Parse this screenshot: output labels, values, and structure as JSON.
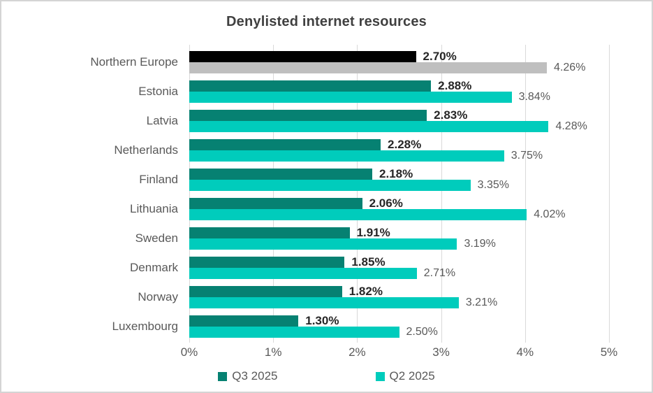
{
  "title": "Denylisted internet resources",
  "colors": {
    "q3_series": "#068172",
    "q2_series": "#00CCBC",
    "q3_highlight": "#000000",
    "q2_highlight": "#BFBFBF",
    "gridline": "#D9D9D9",
    "title_text": "#404040",
    "axis_text": "#595959",
    "q3_value_text": "#262626",
    "q2_value_text": "#595959"
  },
  "legend": {
    "items": [
      {
        "label": "Q3 2025",
        "color": "#068172"
      },
      {
        "label": "Q2 2025",
        "color": "#00CCBC"
      }
    ]
  },
  "chart_data": {
    "type": "bar",
    "orientation": "horizontal",
    "title": "Denylisted internet resources",
    "categories": [
      "Northern Europe",
      "Estonia",
      "Latvia",
      "Netherlands",
      "Finland",
      "Lithuania",
      "Sweden",
      "Denmark",
      "Norway",
      "Luxembourg"
    ],
    "series": [
      {
        "name": "Q3 2025",
        "values": [
          2.7,
          2.88,
          2.83,
          2.28,
          2.18,
          2.06,
          1.91,
          1.85,
          1.82,
          1.3
        ]
      },
      {
        "name": "Q2 2025",
        "values": [
          4.26,
          3.84,
          4.28,
          3.75,
          3.35,
          4.02,
          3.19,
          2.71,
          3.21,
          2.5
        ]
      }
    ],
    "data_labels": [
      [
        "2.70%",
        "4.26%"
      ],
      [
        "2.88%",
        "3.84%"
      ],
      [
        "2.83%",
        "4.28%"
      ],
      [
        "2.28%",
        "3.75%"
      ],
      [
        "2.18%",
        "3.35%"
      ],
      [
        "2.06%",
        "4.02%"
      ],
      [
        "1.91%",
        "3.19%"
      ],
      [
        "1.85%",
        "2.71%"
      ],
      [
        "1.82%",
        "3.21%"
      ],
      [
        "1.30%",
        "2.50%"
      ]
    ],
    "x_ticks": [
      "0%",
      "1%",
      "2%",
      "3%",
      "4%",
      "5%"
    ],
    "xlim": [
      0,
      5
    ],
    "highlight_category": "Northern Europe",
    "grid": true,
    "legend_position": "bottom"
  }
}
